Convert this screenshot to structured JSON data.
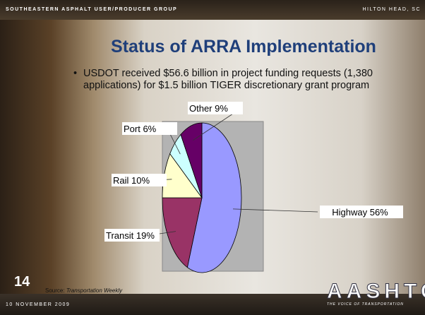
{
  "header": {
    "left": "SOUTHEASTERN ASPHALT USER/PRODUCER GROUP",
    "right": "HILTON HEAD, SC"
  },
  "slide": {
    "title": "Status of ARRA Implementation",
    "bullet": "USDOT received $56.6 billion in project funding requests (1,380 applications) for $1.5 billion TIGER discretionary grant program",
    "number": "14",
    "source": {
      "prefix": "Source:",
      "name": "Transportation Weekly"
    },
    "date": "10 NOVEMBER 2009",
    "logo": {
      "name": "AASHTO",
      "tagline": "THE VOICE OF TRANSPORTATION"
    }
  },
  "chart_data": {
    "type": "pie",
    "values": [
      56,
      19,
      10,
      6,
      9
    ],
    "value_labels": [
      "Highway 56%",
      "Transit 19%",
      "Rail 10%",
      "Port 6%",
      "Other 9%"
    ],
    "colors": [
      "#9999ff",
      "#993366",
      "#ffffcc",
      "#ccffff",
      "#660066"
    ]
  }
}
